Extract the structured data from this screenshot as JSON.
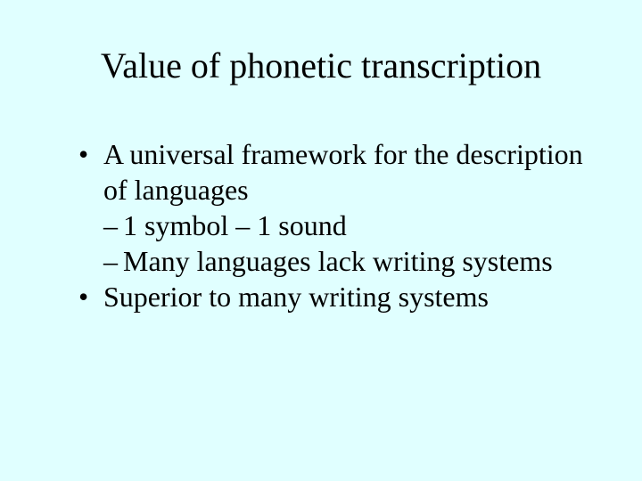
{
  "background_color": "#e0ffff",
  "text_color": "#000000",
  "font_family": "Times New Roman",
  "title": {
    "text": "Value of phonetic transcription",
    "fontsize": 40
  },
  "body": {
    "fontsize": 32,
    "items": [
      {
        "bullet": "•",
        "text": "A universal framework for the description of languages",
        "sub": [
          {
            "dash": "–",
            "text": "1 symbol – 1 sound"
          },
          {
            "dash": "–",
            "text": "Many languages lack writing systems"
          }
        ]
      },
      {
        "bullet": "•",
        "text": "Superior to many writing systems",
        "sub": []
      }
    ]
  }
}
